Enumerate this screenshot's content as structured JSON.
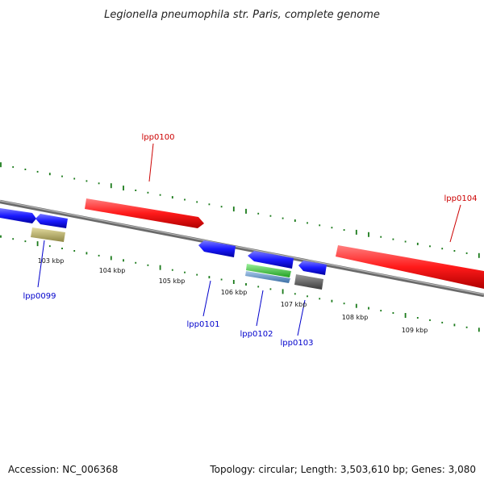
{
  "title": "Legionella pneumophila str. Paris, complete genome",
  "footer": {
    "accession": "Accession: NC_006368",
    "summary": "Topology: circular; Length: 3,503,610 bp; Genes: 3,080"
  },
  "tick_labels": [
    "103 kbp",
    "104 kbp",
    "105 kbp",
    "106 kbp",
    "107 kbp",
    "108 kbp",
    "109 kbp"
  ],
  "gene_labels": [
    {
      "name": "lpp0100",
      "color": "#cc0000"
    },
    {
      "name": "lpp0104",
      "color": "#cc0000"
    },
    {
      "name": "lpp0099",
      "color": "#0000cc"
    },
    {
      "name": "lpp0101",
      "color": "#0000cc"
    },
    {
      "name": "lpp0102",
      "color": "#0000cc"
    },
    {
      "name": "lpp0103",
      "color": "#0000cc"
    }
  ],
  "colors": {
    "forward_gene": "#ff1a1a",
    "reverse_gene": "#1a1aff",
    "backbone": "#888888",
    "gc_ticks": "#1a7a1a",
    "feature_green": "#33cc33",
    "feature_steelblue": "#5b8fc9",
    "feature_khaki": "#c8bf78",
    "feature_gray": "#666666"
  }
}
